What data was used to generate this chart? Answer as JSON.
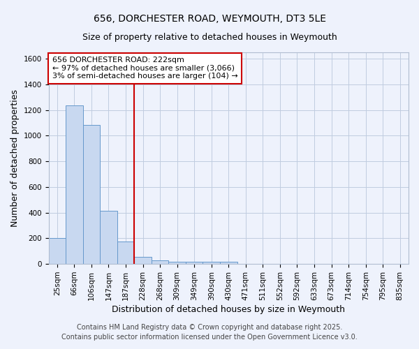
{
  "title": "656, DORCHESTER ROAD, WEYMOUTH, DT3 5LE",
  "subtitle": "Size of property relative to detached houses in Weymouth",
  "xlabel": "Distribution of detached houses by size in Weymouth",
  "ylabel": "Number of detached properties",
  "categories": [
    "25sqm",
    "66sqm",
    "106sqm",
    "147sqm",
    "187sqm",
    "228sqm",
    "268sqm",
    "309sqm",
    "349sqm",
    "390sqm",
    "430sqm",
    "471sqm",
    "511sqm",
    "552sqm",
    "592sqm",
    "633sqm",
    "673sqm",
    "714sqm",
    "754sqm",
    "795sqm",
    "835sqm"
  ],
  "values": [
    205,
    1235,
    1085,
    415,
    175,
    55,
    30,
    20,
    15,
    15,
    15,
    0,
    0,
    0,
    0,
    0,
    0,
    0,
    0,
    0,
    0
  ],
  "bar_color": "#c8d8f0",
  "bar_edge_color": "#6699cc",
  "vline_color": "#cc0000",
  "vline_x": 5,
  "annotation_line1": "656 DORCHESTER ROAD: 222sqm",
  "annotation_line2": "← 97% of detached houses are smaller (3,066)",
  "annotation_line3": "3% of semi-detached houses are larger (104) →",
  "annotation_box_color": "white",
  "annotation_box_edge_color": "#cc0000",
  "ylim": [
    0,
    1650
  ],
  "yticks": [
    0,
    200,
    400,
    600,
    800,
    1000,
    1200,
    1400,
    1600
  ],
  "footer_line1": "Contains HM Land Registry data © Crown copyright and database right 2025.",
  "footer_line2": "Contains public sector information licensed under the Open Government Licence v3.0.",
  "background_color": "#eef2fc",
  "grid_color": "#c0cce0",
  "title_fontsize": 10,
  "subtitle_fontsize": 9,
  "axis_label_fontsize": 9,
  "tick_fontsize": 7.5,
  "annotation_fontsize": 8,
  "footer_fontsize": 7
}
